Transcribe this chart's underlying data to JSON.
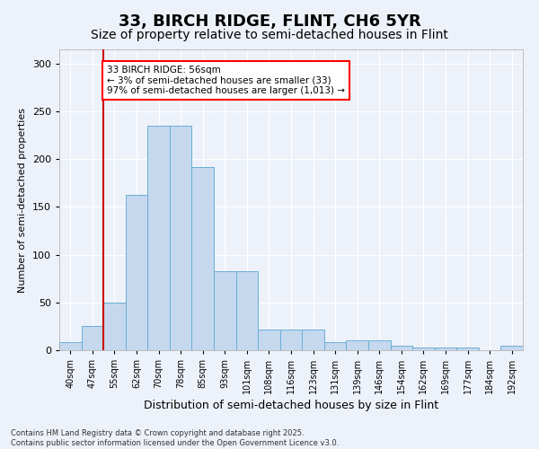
{
  "title": "33, BIRCH RIDGE, FLINT, CH6 5YR",
  "subtitle": "Size of property relative to semi-detached houses in Flint",
  "xlabel": "Distribution of semi-detached houses by size in Flint",
  "ylabel": "Number of semi-detached properties",
  "footnote": "Contains HM Land Registry data © Crown copyright and database right 2025.\nContains public sector information licensed under the Open Government Licence v3.0.",
  "bar_labels": [
    "40sqm",
    "47sqm",
    "55sqm",
    "62sqm",
    "70sqm",
    "78sqm",
    "85sqm",
    "93sqm",
    "101sqm",
    "108sqm",
    "116sqm",
    "123sqm",
    "131sqm",
    "139sqm",
    "146sqm",
    "154sqm",
    "162sqm",
    "169sqm",
    "177sqm",
    "184sqm",
    "192sqm"
  ],
  "bar_values": [
    8,
    25,
    50,
    163,
    235,
    235,
    192,
    83,
    83,
    22,
    22,
    22,
    8,
    10,
    10,
    5,
    3,
    3,
    3,
    0,
    5
  ],
  "bar_color": "#c5d8ee",
  "bar_edge_color": "#6aaed6",
  "vline_color": "#cc0000",
  "vline_pos": 1.5,
  "annotation_text": "33 BIRCH RIDGE: 56sqm\n← 3% of semi-detached houses are smaller (33)\n97% of semi-detached houses are larger (1,013) →",
  "ylim": [
    0,
    315
  ],
  "yticks": [
    0,
    50,
    100,
    150,
    200,
    250,
    300
  ],
  "background_color": "#edf2fa",
  "plot_background_color": "#edf2fa",
  "title_fontsize": 13,
  "subtitle_fontsize": 10,
  "grid_color": "#ffffff",
  "xlabel_fontsize": 9,
  "ylabel_fontsize": 8,
  "annotation_fontsize": 7.5,
  "tick_fontsize": 7,
  "ytick_fontsize": 8,
  "footnote_fontsize": 6
}
